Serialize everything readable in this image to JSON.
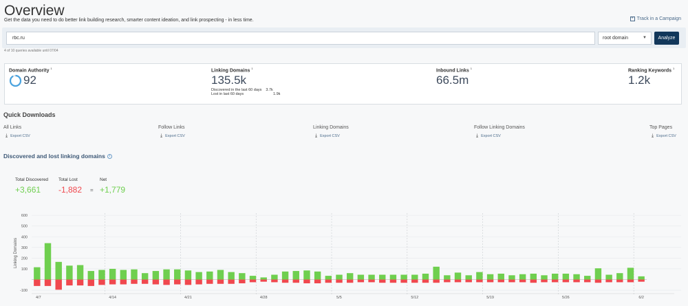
{
  "header": {
    "title": "Overview",
    "subtitle": "Get the data you need to do better link building research, smarter content ideation, and link prospecting - in less time.",
    "track_label": "Track in a Campaign"
  },
  "search": {
    "value": "rbc.ru",
    "scope": "root domain",
    "analyze_label": "Analyze",
    "quota": "4 of 10 queries available until 07/04"
  },
  "metrics": {
    "domain_authority": {
      "label": "Domain Authority",
      "value": "92",
      "gauge_fraction": 0.92
    },
    "linking_domains": {
      "label": "Linking Domains",
      "value": "135.5k",
      "discovered_label": "Discovered in the last 60 days",
      "discovered_value": "3.7k",
      "lost_label": "Lost in last 60 days",
      "lost_value": "1.9k"
    },
    "inbound_links": {
      "label": "Inbound Links",
      "value": "66.5m"
    },
    "ranking_keywords": {
      "label": "Ranking Keywords",
      "value": "1.2k"
    },
    "footnote_mark": "1"
  },
  "quick_downloads": {
    "title": "Quick Downloads",
    "export_label": "Export CSV",
    "items": [
      "All Links",
      "Follow Links",
      "Linking Domains",
      "Follow Linking Domains",
      "Top Pages"
    ]
  },
  "discovered_lost": {
    "title": "Discovered and lost linking domains",
    "total_discovered_label": "Total Discovered",
    "total_discovered": "+3,661",
    "total_lost_label": "Total Lost",
    "total_lost": "-1,882",
    "equals": "=",
    "net_label": "Net",
    "net": "+1,779"
  },
  "colors": {
    "gain": "#6fcf4f",
    "loss": "#f0484e",
    "accent": "#12375a",
    "gauge": "#4aa3df"
  },
  "chart_data": {
    "type": "bar",
    "ylabel": "Linking Domains",
    "y_ticks": [
      600,
      500,
      400,
      300,
      200,
      100,
      -100
    ],
    "ylim": [
      -125,
      620
    ],
    "x_ticks": [
      "4/7",
      "4/14",
      "4/21",
      "4/28",
      "5/5",
      "5/12",
      "5/19",
      "5/26",
      "6/2"
    ],
    "dates_start_label": "4/7",
    "series": [
      {
        "name": "Discovered",
        "values": [
          115,
          340,
          165,
          130,
          135,
          80,
          90,
          100,
          90,
          95,
          60,
          80,
          95,
          95,
          85,
          70,
          75,
          90,
          70,
          60,
          35,
          20,
          45,
          75,
          80,
          85,
          75,
          35,
          45,
          60,
          45,
          45,
          45,
          45,
          45,
          45,
          55,
          120,
          40,
          65,
          40,
          70,
          50,
          55,
          40,
          50,
          55,
          40,
          55,
          55,
          50,
          35,
          105,
          45,
          60,
          110,
          30
        ]
      },
      {
        "name": "Lost",
        "values": [
          -60,
          -60,
          -95,
          -55,
          -55,
          -60,
          -50,
          -45,
          -45,
          -40,
          -40,
          -45,
          -50,
          -45,
          -50,
          -45,
          -40,
          -40,
          -40,
          -35,
          -25,
          -20,
          -25,
          -30,
          -30,
          -35,
          -35,
          -30,
          -30,
          -30,
          -25,
          -25,
          -30,
          -30,
          -30,
          -30,
          -30,
          -30,
          -25,
          -25,
          -25,
          -25,
          -25,
          -25,
          -25,
          -25,
          -30,
          -25,
          -25,
          -25,
          -25,
          -25,
          -30,
          -25,
          -25,
          -25,
          -20
        ]
      }
    ]
  }
}
